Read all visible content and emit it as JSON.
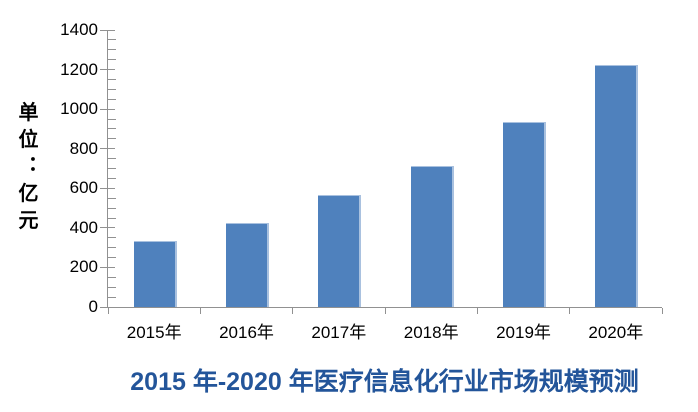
{
  "chart_data": {
    "type": "bar",
    "title": "2015 年-2020 年医疗信息化行业市场规模预测",
    "ylabel": "单位：亿元",
    "xlabel": "",
    "categories": [
      "2015年",
      "2016年",
      "2017年",
      "2018年",
      "2019年",
      "2020年"
    ],
    "values": [
      330,
      420,
      560,
      710,
      930,
      1220
    ],
    "ylim": [
      0,
      1400
    ],
    "y_ticks": [
      0,
      200,
      400,
      600,
      800,
      1000,
      1200,
      1400
    ],
    "y_tick_interval": 200,
    "y_minor_tick_interval": 50,
    "grid": false,
    "legend": false,
    "bar_color": "#4F81BD",
    "bar_edge_color": "#A9C1DF",
    "axis_color": "#919191",
    "title_color": "#23559A",
    "label_color": "#000000"
  }
}
